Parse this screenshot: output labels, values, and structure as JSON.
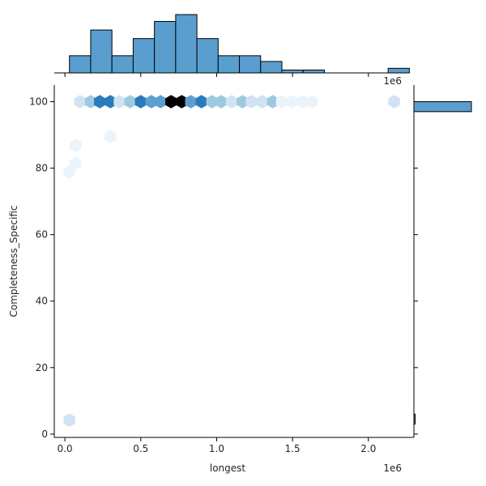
{
  "chart_data": {
    "type": "hexbin-joint",
    "xlabel": "longest",
    "ylabel": "Completeness_Specific",
    "x_offset_label": "1e6",
    "top_offset_label": "1e6",
    "x_ticks": [
      {
        "value": 0.0,
        "label": "0.0"
      },
      {
        "value": 0.5,
        "label": "0.5"
      },
      {
        "value": 1.0,
        "label": "1.0"
      },
      {
        "value": 1.5,
        "label": "1.5"
      },
      {
        "value": 2.0,
        "label": "2.0"
      }
    ],
    "y_ticks": [
      {
        "value": 0,
        "label": "0"
      },
      {
        "value": 20,
        "label": "20"
      },
      {
        "value": 40,
        "label": "40"
      },
      {
        "value": 60,
        "label": "60"
      },
      {
        "value": 80,
        "label": "80"
      },
      {
        "value": 100,
        "label": "100"
      }
    ],
    "xlim": [
      -0.07,
      2.3
    ],
    "ylim": [
      -1,
      105
    ],
    "colors": {
      "bar_fill": "#5a9ecf",
      "bar_edge": "#000000",
      "hex_scale": [
        "#ecf4fb",
        "#d0e3f4",
        "#9ecae1",
        "#5d9fd0",
        "#2b7bba",
        "#000000"
      ]
    },
    "hexbins": [
      {
        "x": 0.1,
        "y": 100,
        "level": 1
      },
      {
        "x": 0.17,
        "y": 100,
        "level": 2
      },
      {
        "x": 0.23,
        "y": 100,
        "level": 4
      },
      {
        "x": 0.3,
        "y": 100,
        "level": 4
      },
      {
        "x": 0.36,
        "y": 100,
        "level": 1
      },
      {
        "x": 0.43,
        "y": 100,
        "level": 2
      },
      {
        "x": 0.5,
        "y": 100,
        "level": 4
      },
      {
        "x": 0.57,
        "y": 100,
        "level": 3
      },
      {
        "x": 0.63,
        "y": 100,
        "level": 3
      },
      {
        "x": 0.7,
        "y": 100,
        "level": 5
      },
      {
        "x": 0.77,
        "y": 100,
        "level": 5
      },
      {
        "x": 0.83,
        "y": 100,
        "level": 3
      },
      {
        "x": 0.9,
        "y": 100,
        "level": 4
      },
      {
        "x": 0.97,
        "y": 100,
        "level": 2
      },
      {
        "x": 1.03,
        "y": 100,
        "level": 2
      },
      {
        "x": 1.1,
        "y": 100,
        "level": 1
      },
      {
        "x": 1.17,
        "y": 100,
        "level": 2
      },
      {
        "x": 1.23,
        "y": 100,
        "level": 1
      },
      {
        "x": 1.3,
        "y": 100,
        "level": 1
      },
      {
        "x": 1.37,
        "y": 100,
        "level": 2
      },
      {
        "x": 1.43,
        "y": 100,
        "level": 0
      },
      {
        "x": 1.5,
        "y": 100,
        "level": 0
      },
      {
        "x": 1.57,
        "y": 100,
        "level": 0
      },
      {
        "x": 1.63,
        "y": 100,
        "level": 0
      },
      {
        "x": 2.17,
        "y": 100,
        "level": 1
      },
      {
        "x": 0.3,
        "y": 89.5,
        "level": 0
      },
      {
        "x": 0.07,
        "y": 86.8,
        "level": 0
      },
      {
        "x": 0.07,
        "y": 81.5,
        "level": 0
      },
      {
        "x": 0.03,
        "y": 78.8,
        "level": 0
      },
      {
        "x": 0.03,
        "y": 4.2,
        "level": 1
      }
    ],
    "top_histogram": {
      "bin_edges": [
        0.03,
        0.17,
        0.31,
        0.45,
        0.59,
        0.73,
        0.87,
        1.01,
        1.15,
        1.29,
        1.43,
        1.57,
        1.71,
        1.85,
        1.99,
        2.13,
        2.27
      ],
      "counts": [
        3,
        7.5,
        3,
        6,
        9,
        10.2,
        6,
        3,
        3,
        2,
        0.5,
        0.5,
        0,
        0,
        0,
        0.8
      ]
    },
    "right_histogram": {
      "bins": [
        {
          "y_low": 97,
          "y_high": 100,
          "count": 48
        },
        {
          "y_low": 3,
          "y_high": 6,
          "count": 0.3
        }
      ],
      "count_max": 48
    }
  }
}
